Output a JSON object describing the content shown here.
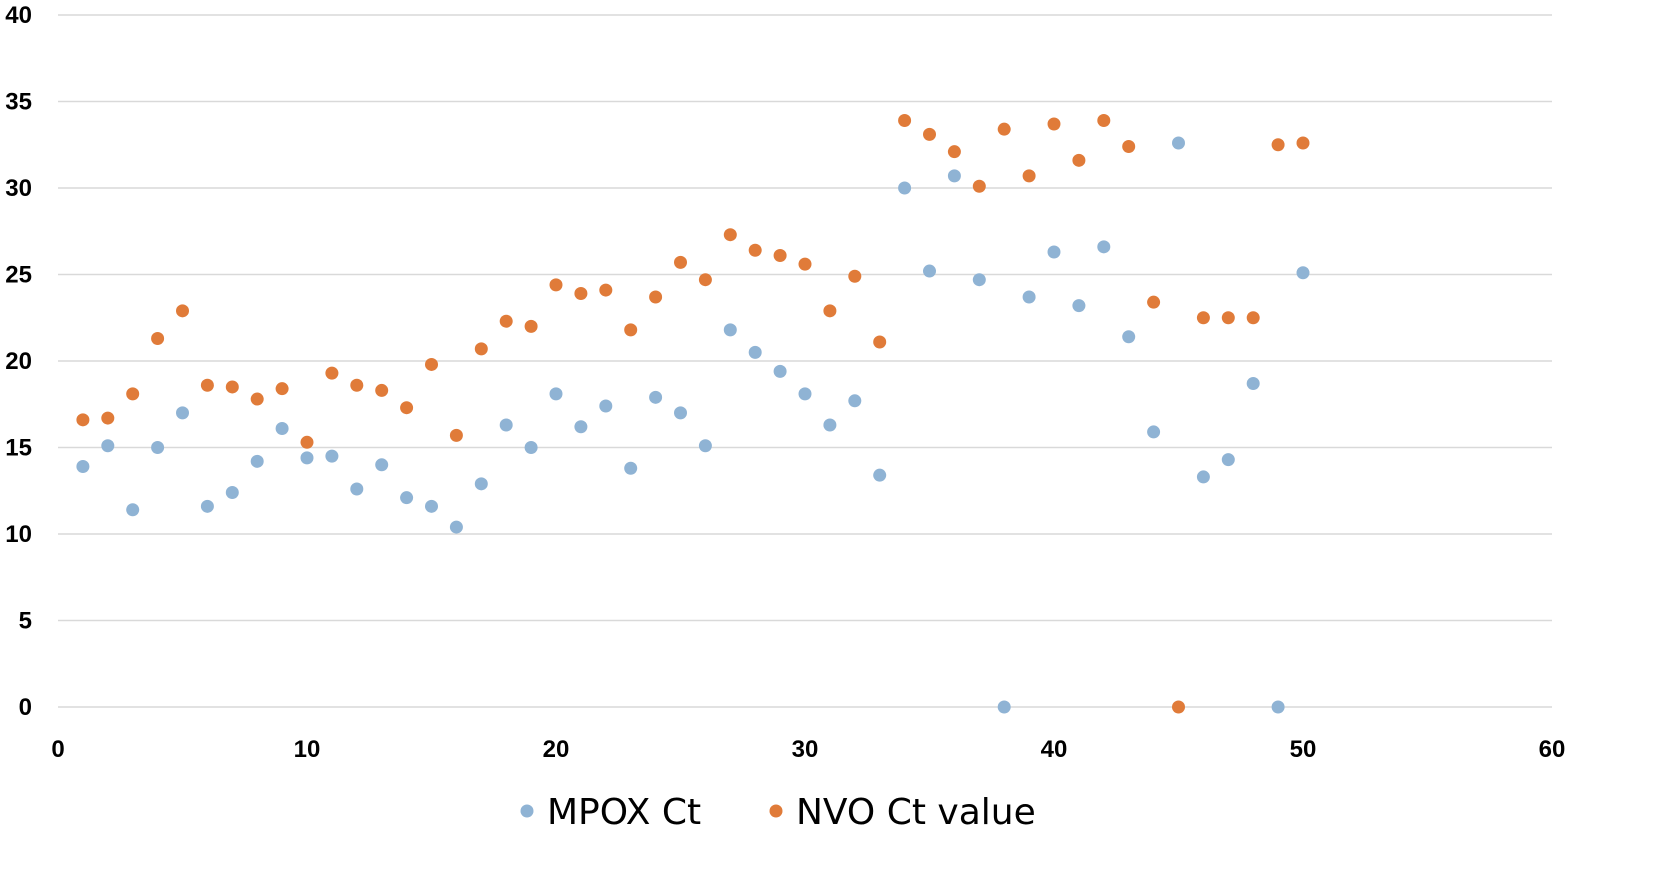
{
  "chart_data": {
    "type": "scatter",
    "xlim": [
      0,
      60
    ],
    "ylim": [
      0,
      40
    ],
    "x_ticks": [
      "0",
      "10",
      "20",
      "30",
      "40",
      "50",
      "60"
    ],
    "y_ticks": [
      "0",
      "5",
      "10",
      "15",
      "20",
      "25",
      "30",
      "35",
      "40"
    ],
    "grid": "horizontal",
    "legend_position": "bottom",
    "series": [
      {
        "name": "MPOX Ct",
        "color": "#8fb3d4",
        "x": [
          1,
          2,
          3,
          4,
          5,
          6,
          7,
          8,
          9,
          10,
          11,
          12,
          13,
          14,
          15,
          16,
          17,
          18,
          19,
          20,
          21,
          22,
          23,
          24,
          25,
          26,
          27,
          28,
          29,
          30,
          31,
          32,
          33,
          34,
          35,
          36,
          37,
          38,
          39,
          40,
          41,
          42,
          43,
          44,
          45,
          46,
          47,
          48,
          49,
          50
        ],
        "y": [
          13.9,
          15.1,
          11.4,
          15.0,
          17.0,
          11.6,
          12.4,
          14.2,
          16.1,
          14.4,
          14.5,
          12.6,
          14.0,
          12.1,
          11.6,
          10.4,
          12.9,
          16.3,
          15.0,
          18.1,
          16.2,
          17.4,
          13.8,
          17.9,
          17.0,
          15.1,
          21.8,
          20.5,
          19.4,
          18.1,
          16.3,
          17.7,
          13.4,
          30.0,
          25.2,
          30.7,
          24.7,
          0,
          23.7,
          26.3,
          23.2,
          26.6,
          21.4,
          15.9,
          32.6,
          13.3,
          14.3,
          18.7,
          0,
          25.1
        ]
      },
      {
        "name": "NVO Ct value",
        "color": "#e07b39",
        "x": [
          1,
          2,
          3,
          4,
          5,
          6,
          7,
          8,
          9,
          10,
          11,
          12,
          13,
          14,
          15,
          16,
          17,
          18,
          19,
          20,
          21,
          22,
          23,
          24,
          25,
          26,
          27,
          28,
          29,
          30,
          31,
          32,
          33,
          34,
          35,
          36,
          37,
          38,
          39,
          40,
          41,
          42,
          43,
          44,
          45,
          46,
          47,
          48,
          49,
          50
        ],
        "y": [
          16.6,
          16.7,
          18.1,
          21.3,
          22.9,
          18.6,
          18.5,
          17.8,
          18.4,
          15.3,
          19.3,
          18.6,
          18.3,
          17.3,
          19.8,
          15.7,
          20.7,
          22.3,
          22.0,
          24.4,
          23.9,
          24.1,
          21.8,
          23.7,
          25.7,
          24.7,
          27.3,
          26.4,
          26.1,
          25.6,
          22.9,
          24.9,
          21.1,
          33.9,
          33.1,
          32.1,
          30.1,
          33.4,
          30.7,
          33.7,
          31.6,
          33.9,
          32.4,
          23.4,
          0,
          22.5,
          22.5,
          22.5,
          32.5,
          32.6
        ]
      }
    ]
  }
}
